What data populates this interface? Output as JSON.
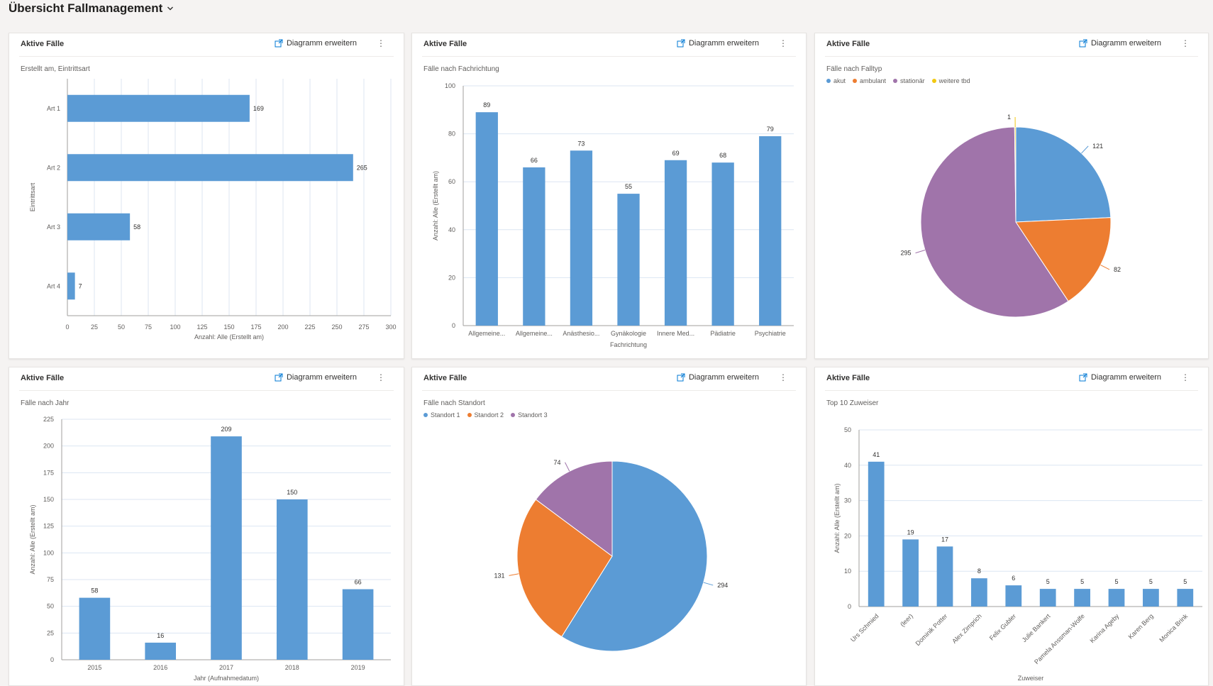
{
  "page": {
    "title": "Übersicht Fallmanagement"
  },
  "colors": {
    "blue": "#5b9bd5",
    "orange": "#ed7d31",
    "purple": "#a074aa",
    "yellow": "#f2c811",
    "grid": "#dce6f2",
    "axis": "#a19f9d"
  },
  "icons": {
    "title_dropdown": "chevron-down-icon",
    "expand": "expand-icon",
    "more": "more-vertical-icon"
  },
  "cards": [
    {
      "title": "Aktive Fälle",
      "expand_label": "Diagramm erweitern",
      "more_label": "⋮",
      "subtitle": "Erstellt am, Eintrittsart",
      "chart_data": {
        "type": "bar",
        "orientation": "horizontal",
        "categories": [
          "Art 1",
          "Art 2",
          "Art 3",
          "Art 4"
        ],
        "values": [
          169,
          265,
          58,
          7
        ],
        "xlabel": "Anzahl: Alle (Erstellt am)",
        "ylabel": "Eintrittsart",
        "xlim": [
          0,
          300
        ],
        "ticks": [
          "0",
          "25",
          "50",
          "75",
          "100",
          "125",
          "150",
          "175",
          "200",
          "225",
          "250",
          "275",
          "300"
        ],
        "grid": true
      }
    },
    {
      "title": "Aktive Fälle",
      "expand_label": "Diagramm erweitern",
      "more_label": "⋮",
      "subtitle": "Fälle nach Fachrichtung",
      "chart_data": {
        "type": "bar",
        "categories": [
          "Allgemeine...",
          "Allgemeine...",
          "Anästhesio...",
          "Gynäkologie",
          "Innere Med...",
          "Pädiatrie",
          "Psychiatrie"
        ],
        "values": [
          89,
          66,
          73,
          55,
          69,
          68,
          79
        ],
        "xlabel": "Fachrichtung",
        "ylabel": "Anzahl: Alle (Erstellt am)",
        "ylim": [
          0,
          100
        ],
        "ticks": [
          "0",
          "20",
          "40",
          "60",
          "80",
          "100"
        ],
        "grid": true
      }
    },
    {
      "title": "Aktive Fälle",
      "expand_label": "Diagramm erweitern",
      "more_label": "⋮",
      "subtitle": "Fälle nach Falltyp",
      "chart_data": {
        "type": "pie",
        "categories": [
          "akut",
          "ambulant",
          "stationär",
          "weitere tbd"
        ],
        "values": [
          121,
          82,
          295,
          1
        ],
        "colors": [
          "#5b9bd5",
          "#ed7d31",
          "#a074aa",
          "#f2c811"
        ],
        "legend": "top-left"
      }
    },
    {
      "title": "Aktive Fälle",
      "expand_label": "Diagramm erweitern",
      "more_label": "⋮",
      "subtitle": "Fälle nach Jahr",
      "chart_data": {
        "type": "bar",
        "categories": [
          "2015",
          "2016",
          "2017",
          "2018",
          "2019"
        ],
        "values": [
          58,
          16,
          209,
          150,
          66
        ],
        "xlabel": "Jahr (Aufnahmedatum)",
        "ylabel": "Anzahl: Alle (Erstellt am)",
        "ylim": [
          0,
          225
        ],
        "ticks": [
          "0",
          "25",
          "50",
          "75",
          "100",
          "125",
          "150",
          "175",
          "200",
          "225"
        ],
        "grid": true
      }
    },
    {
      "title": "Aktive Fälle",
      "expand_label": "Diagramm erweitern",
      "more_label": "⋮",
      "subtitle": "Fälle nach Standort",
      "chart_data": {
        "type": "pie",
        "categories": [
          "Standort 1",
          "Standort 2",
          "Standort 3"
        ],
        "values": [
          294,
          131,
          74
        ],
        "colors": [
          "#5b9bd5",
          "#ed7d31",
          "#a074aa"
        ],
        "legend": "top-left"
      }
    },
    {
      "title": "Aktive Fälle",
      "expand_label": "Diagramm erweitern",
      "more_label": "⋮",
      "subtitle": "Top 10 Zuweiser",
      "chart_data": {
        "type": "bar",
        "categories": [
          "Urs Schmied",
          "(leer)",
          "Dominik Potter",
          "Alex Zimprich",
          "Felix Gubler",
          "Julie Bankert",
          "Pamela Anssman-Wolfe",
          "Karina Ageby",
          "Karen Berg",
          "Monica Brink"
        ],
        "values": [
          41,
          19,
          17,
          8,
          6,
          5,
          5,
          5,
          5,
          5
        ],
        "xlabel": "Zuweiser",
        "ylabel": "Anzahl: Alle (Erstellt am)",
        "ylim": [
          0,
          50
        ],
        "ticks": [
          "0",
          "10",
          "20",
          "30",
          "40",
          "50"
        ],
        "grid": true
      }
    }
  ]
}
